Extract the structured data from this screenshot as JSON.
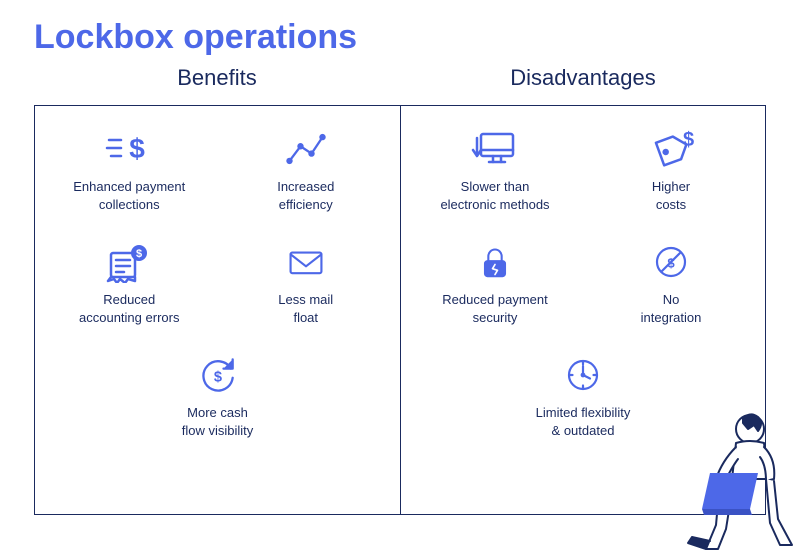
{
  "title": "Lockbox operations",
  "title_color": "#4d68e8",
  "title_fontsize": 34,
  "column_header_color": "#1a2a5e",
  "column_header_fontsize": 22,
  "item_label_color": "#1a2a5e",
  "item_label_fontsize": 13,
  "icon_color": "#4d68e8",
  "panel_border_color": "#1a2a5e",
  "background_color": "#ffffff",
  "columns": [
    {
      "header": "Benefits",
      "items": [
        {
          "icon": "dollar-speed",
          "label": "Enhanced payment\ncollections"
        },
        {
          "icon": "chart-nodes",
          "label": "Increased\nefficiency"
        },
        {
          "icon": "invoice-coin",
          "label": "Reduced\naccounting errors"
        },
        {
          "icon": "envelope",
          "label": "Less mail\nfloat"
        },
        {
          "icon": "refresh-dollar",
          "label": "More cash\nflow visibility",
          "span": 2
        }
      ]
    },
    {
      "header": "Disadvantages",
      "items": [
        {
          "icon": "monitor-down",
          "label": "Slower than\nelectronic methods"
        },
        {
          "icon": "tag-dollar",
          "label": "Higher\ncosts"
        },
        {
          "icon": "lock-broken",
          "label": "Reduced payment\nsecurity"
        },
        {
          "icon": "no-dollar",
          "label": "No\nintegration"
        },
        {
          "icon": "clock",
          "label": "Limited flexibility\n& outdated",
          "span": 2
        }
      ]
    }
  ],
  "illustration": {
    "skin_color": "#ffffff",
    "outline_color": "#1a2a5e",
    "laptop_color": "#4d68e8",
    "shirt_color": "#ffffff"
  }
}
